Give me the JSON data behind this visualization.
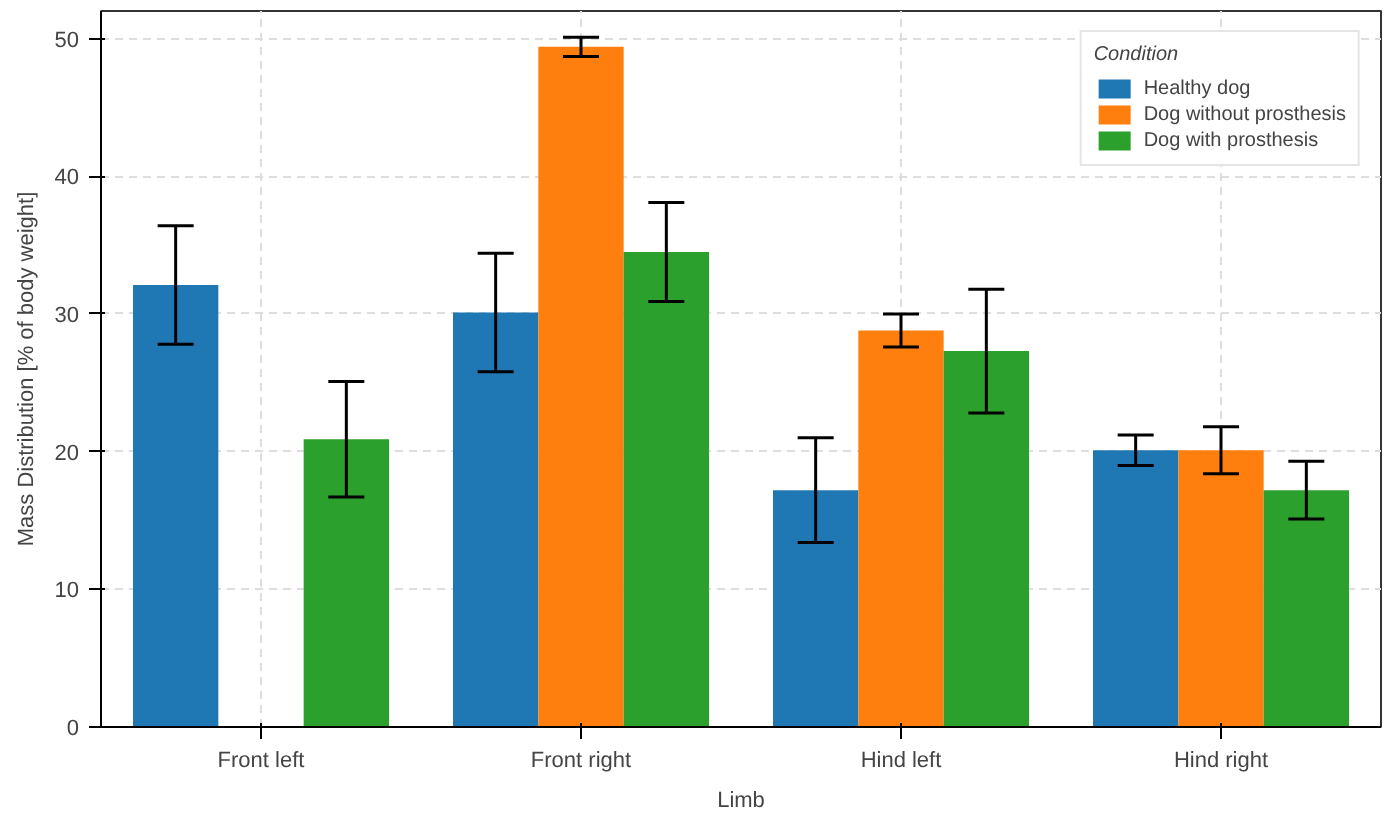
{
  "chart_data": {
    "type": "bar",
    "xlabel": "Limb",
    "ylabel": "Mass Distribution [% of body weight]",
    "legend_title": "Condition",
    "categories": [
      "Front left",
      "Front right",
      "Hind left",
      "Hind right"
    ],
    "series": [
      {
        "name": "Healthy dog",
        "color": "#1f77b4",
        "values": [
          32.1,
          30.1,
          17.2,
          20.1
        ],
        "errors": [
          4.3,
          4.3,
          3.8,
          1.1
        ]
      },
      {
        "name": "Dog without prosthesis",
        "color": "#ff7f0e",
        "values": [
          0,
          49.4,
          28.8,
          20.1
        ],
        "errors": [
          null,
          0.7,
          1.2,
          1.7
        ]
      },
      {
        "name": "Dog with prosthesis",
        "color": "#2ca02c",
        "values": [
          20.9,
          34.5,
          27.3,
          17.2
        ],
        "errors": [
          4.2,
          3.6,
          4.5,
          2.1
        ]
      }
    ],
    "ylim": [
      0,
      52
    ],
    "yticks": [
      0,
      10,
      20,
      30,
      40,
      50
    ],
    "grid": true,
    "legend": "top right"
  }
}
